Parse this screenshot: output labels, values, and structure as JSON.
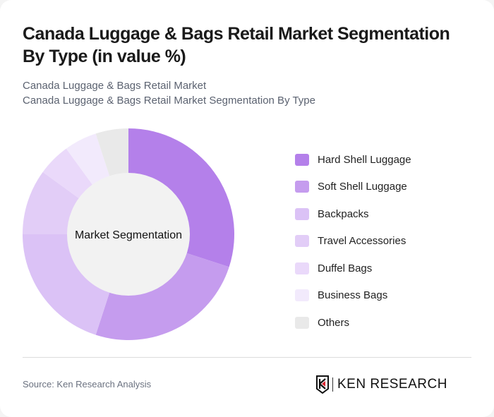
{
  "header": {
    "title": "Canada Luggage & Bags Retail Market Segmentation By Type (in value %)",
    "subtitle_1": "Canada Luggage & Bags Retail Market",
    "subtitle_2": "Canada Luggage & Bags Retail Market Segmentation By Type"
  },
  "chart": {
    "center_label": "Market Segmentation"
  },
  "legend": [
    {
      "label": "Hard Shell Luggage",
      "color": "#b480ea"
    },
    {
      "label": "Soft Shell Luggage",
      "color": "#c59cee"
    },
    {
      "label": "Backpacks",
      "color": "#dbc2f6"
    },
    {
      "label": "Travel Accessories",
      "color": "#e2cdf7"
    },
    {
      "label": "Duffel Bags",
      "color": "#ead9fa"
    },
    {
      "label": "Business Bags",
      "color": "#f2eafc"
    },
    {
      "label": "Others",
      "color": "#e9e9e9"
    }
  ],
  "footer": {
    "source": "Source: Ken Research Analysis",
    "logo_text": "KEN RESEARCH"
  },
  "chart_data": {
    "type": "pie",
    "title": "Canada Luggage & Bags Retail Market Segmentation By Type (in value %)",
    "donut": true,
    "center_label": "Market Segmentation",
    "categories": [
      "Hard Shell Luggage",
      "Soft Shell Luggage",
      "Backpacks",
      "Travel Accessories",
      "Duffel Bags",
      "Business Bags",
      "Others"
    ],
    "values": [
      30,
      25,
      20,
      10,
      5,
      5,
      5
    ],
    "colors": [
      "#b480ea",
      "#c59cee",
      "#dbc2f6",
      "#e2cdf7",
      "#ead9fa",
      "#f2eafc",
      "#e9e9e9"
    ],
    "legend_position": "right",
    "unit": "%"
  }
}
